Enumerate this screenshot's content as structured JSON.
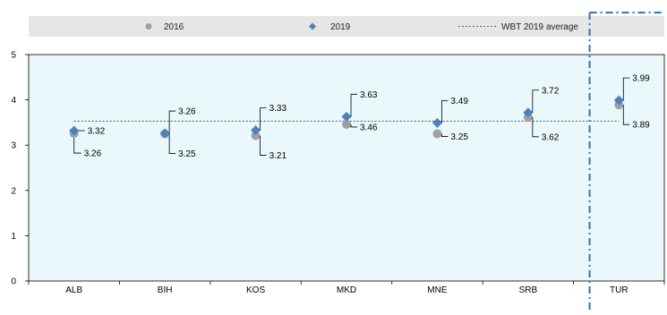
{
  "chart_data": {
    "type": "scatter",
    "categories": [
      "ALB",
      "BIH",
      "KOS",
      "MKD",
      "MNE",
      "SRB",
      "TUR"
    ],
    "series": [
      {
        "name": "2016",
        "marker": "circle",
        "color": "#a0a0a0",
        "values": [
          3.26,
          3.25,
          3.21,
          3.46,
          3.25,
          3.62,
          3.89
        ]
      },
      {
        "name": "2019",
        "marker": "diamond",
        "color": "#4f81bd",
        "values": [
          3.32,
          3.26,
          3.33,
          3.63,
          3.49,
          3.72,
          3.99
        ]
      }
    ],
    "reference_line": {
      "name": "WBT 2019 average",
      "value": 3.53,
      "style": "dashed"
    },
    "labels": {
      "2016": [
        "3.26",
        "3.25",
        "3.21",
        "3.46",
        "3.25",
        "3.62",
        "3.89"
      ],
      "2019": [
        "3.32",
        "3.26",
        "3.33",
        "3.63",
        "3.49",
        "3.72",
        "3.99"
      ]
    },
    "ylim": [
      0,
      5
    ],
    "yticks": [
      "0",
      "1",
      "2",
      "3",
      "4",
      "5"
    ],
    "xlabel": "",
    "ylabel": "",
    "title": "",
    "legend_position": "top",
    "plot_background": "#eaf7fb",
    "separator_before": "TUR"
  }
}
